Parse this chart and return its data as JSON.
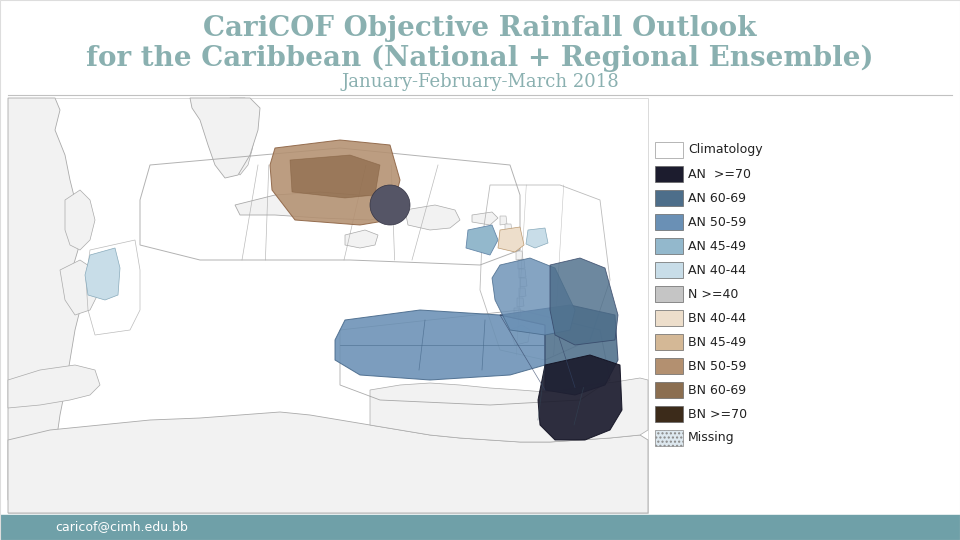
{
  "title_line1": "CariCOF Objective Rainfall Outlook",
  "title_line2": "for the Caribbean (National + Regional Ensemble)",
  "subtitle": "January-February-March 2018",
  "title_color": "#8ab0b0",
  "title_fontsize": 20,
  "subtitle_fontsize": 13,
  "footer_text": "caricof@cimh.edu.bb",
  "footer_bg": "#6fa0a8",
  "footer_text_color": "#ffffff",
  "background_color": "#ffffff",
  "legend_items": [
    {
      "label": "Climatology",
      "color": "#ffffff",
      "hatch": null
    },
    {
      "label": "AN  >=70",
      "color": "#1c1c2e",
      "hatch": null
    },
    {
      "label": "AN 60-69",
      "color": "#4d6e8a",
      "hatch": null
    },
    {
      "label": "AN 50-59",
      "color": "#6a90b5",
      "hatch": null
    },
    {
      "label": "AN 45-49",
      "color": "#93b8cc",
      "hatch": null
    },
    {
      "label": "AN 40-44",
      "color": "#c8dde8",
      "hatch": null
    },
    {
      "label": "N >=40",
      "color": "#c5c5c5",
      "hatch": null
    },
    {
      "label": "BN 40-44",
      "color": "#eddecb",
      "hatch": null
    },
    {
      "label": "BN 45-49",
      "color": "#d4b896",
      "hatch": null
    },
    {
      "label": "BN 50-59",
      "color": "#b39070",
      "hatch": null
    },
    {
      "label": "BN 60-69",
      "color": "#8b6e50",
      "hatch": null
    },
    {
      "label": "BN >=70",
      "color": "#3c2b1a",
      "hatch": null
    },
    {
      "label": "Missing",
      "color": "#dde8ef",
      "hatch": "...."
    }
  ],
  "divider_color": "#999999",
  "map_outline_color": "#aaaaaa",
  "land_color": "#f2f2f2",
  "grid_color": "#bbbbbb"
}
